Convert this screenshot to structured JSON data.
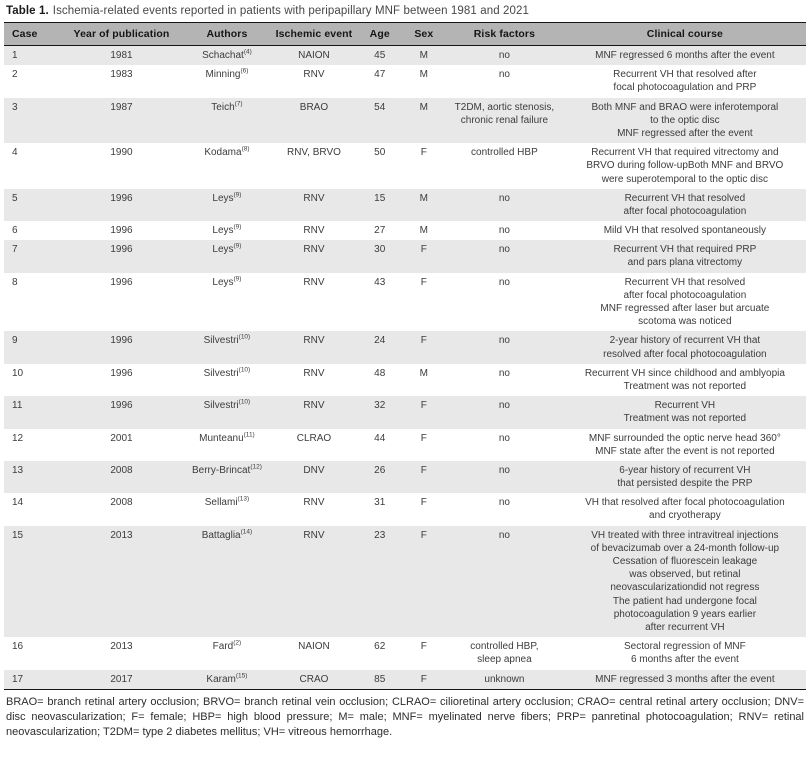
{
  "title": {
    "label": "Table 1.",
    "caption": "Ischemia-related events reported in patients with peripapillary MNF between 1981 and 2021"
  },
  "table": {
    "headers": [
      "Case",
      "Year of publication",
      "Authors",
      "Ischemic event",
      "Age",
      "Sex",
      "Risk factors",
      "Clinical course"
    ],
    "rows": [
      {
        "case": "1",
        "year": "1981",
        "author": "Schachat",
        "ref": "(4)",
        "event": "NAION",
        "age": "45",
        "sex": "M",
        "risk": "no",
        "course": "MNF regressed 6 months after the event"
      },
      {
        "case": "2",
        "year": "1983",
        "author": "Minning",
        "ref": "(6)",
        "event": "RNV",
        "age": "47",
        "sex": "M",
        "risk": "no",
        "course": "Recurrent VH that resolved after\nfocal photocoagulation and PRP"
      },
      {
        "case": "3",
        "year": "1987",
        "author": "Teich",
        "ref": "(7)",
        "event": "BRAO",
        "age": "54",
        "sex": "M",
        "risk": "T2DM, aortic stenosis,\nchronic renal failure",
        "course": "Both MNF and BRAO were inferotemporal\nto the optic disc\nMNF regressed after the event"
      },
      {
        "case": "4",
        "year": "1990",
        "author": "Kodama",
        "ref": "(8)",
        "event": "RNV, BRVO",
        "age": "50",
        "sex": "F",
        "risk": "controlled HBP",
        "course": "Recurrent VH that required vitrectomy and\nBRVO during follow-upBoth MNF and BRVO\nwere superotemporal to the optic disc"
      },
      {
        "case": "5",
        "year": "1996",
        "author": "Leys",
        "ref": "(9)",
        "event": "RNV",
        "age": "15",
        "sex": "M",
        "risk": "no",
        "course": "Recurrent VH that resolved\nafter focal photocoagulation"
      },
      {
        "case": "6",
        "year": "1996",
        "author": "Leys",
        "ref": "(9)",
        "event": "RNV",
        "age": "27",
        "sex": "M",
        "risk": "no",
        "course": "Mild VH that resolved spontaneously"
      },
      {
        "case": "7",
        "year": "1996",
        "author": "Leys",
        "ref": "(9)",
        "event": "RNV",
        "age": "30",
        "sex": "F",
        "risk": "no",
        "course": "Recurrent VH that required PRP\nand pars plana vitrectomy"
      },
      {
        "case": "8",
        "year": "1996",
        "author": "Leys",
        "ref": "(9)",
        "event": "RNV",
        "age": "43",
        "sex": "F",
        "risk": "no",
        "course": "Recurrent VH that resolved\nafter focal photocoagulation\nMNF regressed after laser but arcuate\nscotoma was noticed"
      },
      {
        "case": "9",
        "year": "1996",
        "author": "Silvestri",
        "ref": "(10)",
        "event": "RNV",
        "age": "24",
        "sex": "F",
        "risk": "no",
        "course": "2-year history of recurrent VH that\nresolved after focal photocoagulation"
      },
      {
        "case": "10",
        "year": "1996",
        "author": "Silvestri",
        "ref": "(10)",
        "event": "RNV",
        "age": "48",
        "sex": "M",
        "risk": "no",
        "course": "Recurrent VH since childhood and amblyopia\nTreatment was not reported"
      },
      {
        "case": "11",
        "year": "1996",
        "author": "Silvestri",
        "ref": "(10)",
        "event": "RNV",
        "age": "32",
        "sex": "F",
        "risk": "no",
        "course": "Recurrent VH\nTreatment was not reported"
      },
      {
        "case": "12",
        "year": "2001",
        "author": "Munteanu",
        "ref": "(11)",
        "event": "CLRAO",
        "age": "44",
        "sex": "F",
        "risk": "no",
        "course": "MNF surrounded the optic nerve head 360°\nMNF state after the event is not reported"
      },
      {
        "case": "13",
        "year": "2008",
        "author": "Berry-Brincat",
        "ref": "(12)",
        "event": "DNV",
        "age": "26",
        "sex": "F",
        "risk": "no",
        "course": "6-year history of recurrent VH\nthat persisted despite the PRP"
      },
      {
        "case": "14",
        "year": "2008",
        "author": "Sellami",
        "ref": "(13)",
        "event": "RNV",
        "age": "31",
        "sex": "F",
        "risk": "no",
        "course": "VH that resolved after focal photocoagulation\nand cryotherapy"
      },
      {
        "case": "15",
        "year": "2013",
        "author": "Battaglia",
        "ref": "(14)",
        "event": "RNV",
        "age": "23",
        "sex": "F",
        "risk": "no",
        "course": "VH treated with three intravitreal injections\nof bevacizumab over a 24-month follow-up\nCessation of fluorescein leakage\nwas observed, but retinal\nneovascularizationdid not regress\nThe patient had undergone focal\nphotocoagulation 9 years earlier\nafter recurrent VH"
      },
      {
        "case": "16",
        "year": "2013",
        "author": "Fard",
        "ref": "(2)",
        "event": "NAION",
        "age": "62",
        "sex": "F",
        "risk": "controlled HBP,\nsleep apnea",
        "course": "Sectoral regression of MNF\n6 months after the event"
      },
      {
        "case": "17",
        "year": "2017",
        "author": "Karam",
        "ref": "(15)",
        "event": "CRAO",
        "age": "85",
        "sex": "F",
        "risk": "unknown",
        "course": "MNF regressed 3 months after the event"
      }
    ]
  },
  "footnote": "BRAO= branch retinal artery occlusion; BRVO= branch retinal vein occlusion; CLRAO= cilioretinal artery occlusion; CRAO= central retinal artery occlusion; DNV= disc neovascularization; F= female; HBP= high blood pressure; M= male; MNF= myelinated nerve fibers; PRP= panretinal photocoagulation; RNV= retinal neovascularization; T2DM= type 2 diabetes mellitus; VH= vitreous hemorrhage.",
  "colors": {
    "header_bg": "#b4b4b4",
    "odd_row_bg": "#e8e8e8",
    "even_row_bg": "#ffffff",
    "border": "#151515",
    "body_text": "#3c3c3c"
  }
}
